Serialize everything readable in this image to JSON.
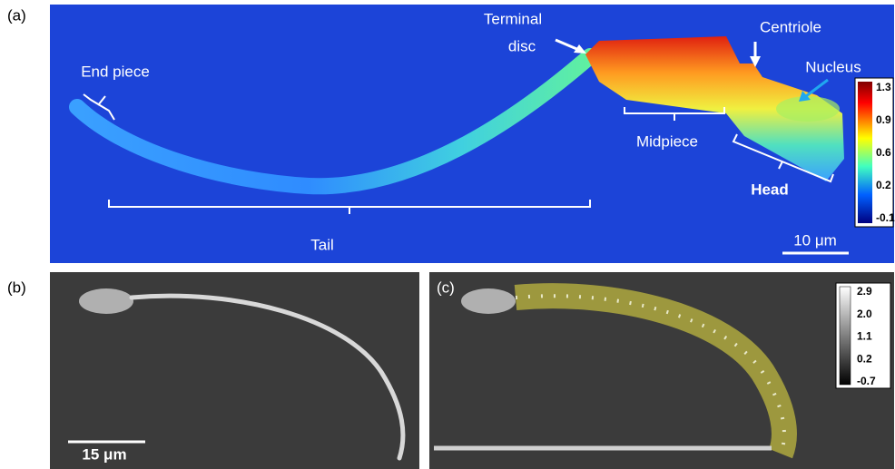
{
  "panel_a": {
    "label": "(a)",
    "annotations": {
      "end_piece": "End piece",
      "terminal_disc": [
        "Terminal",
        "disc"
      ],
      "centriole": "Centriole",
      "nucleus": "Nucleus",
      "midpiece": "Midpiece",
      "head": "Head",
      "tail": "Tail"
    },
    "colorbar": [
      "1.3",
      "0.9",
      "0.6",
      "0.2",
      "-0.1"
    ],
    "scale_bar": "10 μm"
  },
  "panel_b": {
    "label": "(b)",
    "scale_bar": "15 μm"
  },
  "panel_c": {
    "label": "(c)",
    "colorbar": [
      "2.9",
      "2.0",
      "1.1",
      "0.2",
      "-0.7"
    ]
  }
}
